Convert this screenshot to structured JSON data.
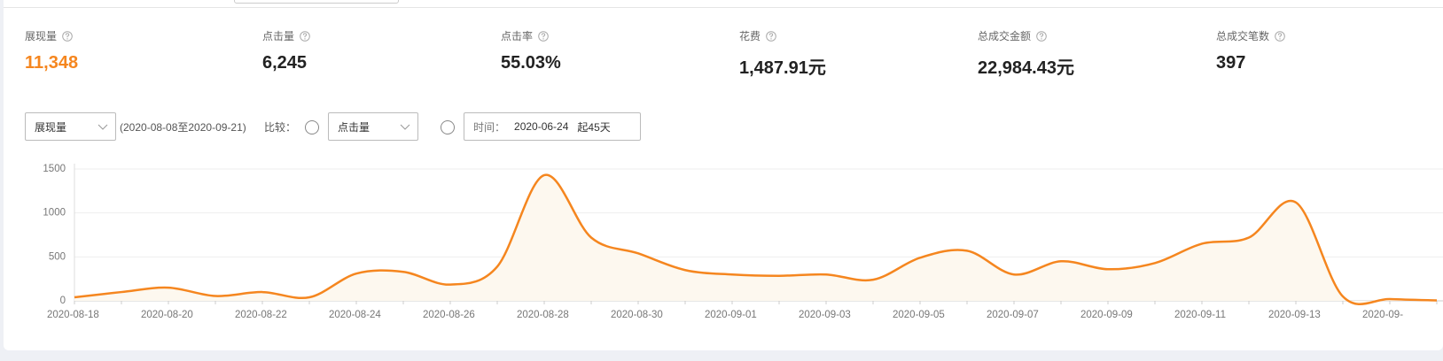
{
  "metrics": [
    {
      "label": "展现量",
      "value": "11,348"
    },
    {
      "label": "点击量",
      "value": "6,245"
    },
    {
      "label": "点击率",
      "value": "55.03%"
    },
    {
      "label": "花费",
      "value": "1,487.91元"
    },
    {
      "label": "总成交金额",
      "value": "22,984.43元"
    },
    {
      "label": "总成交笔数",
      "value": "397"
    }
  ],
  "controls": {
    "metric_select": "展现量",
    "date_range": "(2020-08-08至2020-09-21)",
    "compare_label": "比较：",
    "compare_select": "点击量",
    "time_label": "时间：",
    "time_value": "2020-06-24",
    "time_days": "起45天"
  },
  "chart_data": {
    "type": "line",
    "color": "#f5861f",
    "fill": "#fdf8ef",
    "x": [
      "2020-08-18",
      null,
      "2020-08-20",
      null,
      "2020-08-22",
      null,
      "2020-08-24",
      null,
      "2020-08-26",
      null,
      "2020-08-28",
      null,
      "2020-08-30",
      null,
      "2020-09-01",
      null,
      "2020-09-03",
      null,
      "2020-09-05",
      null,
      "2020-09-07",
      null,
      "2020-09-09",
      null,
      "2020-09-11",
      null,
      "2020-09-13",
      null,
      "2020-09-",
      null
    ],
    "values": [
      40,
      100,
      150,
      55,
      100,
      40,
      310,
      330,
      185,
      390,
      1430,
      720,
      540,
      350,
      300,
      285,
      300,
      240,
      490,
      570,
      300,
      450,
      360,
      430,
      650,
      720,
      1120,
      50,
      20,
      5
    ],
    "ylim": [
      0,
      1500
    ],
    "yticks": [
      0,
      500,
      1000,
      1500
    ],
    "grid": true
  }
}
